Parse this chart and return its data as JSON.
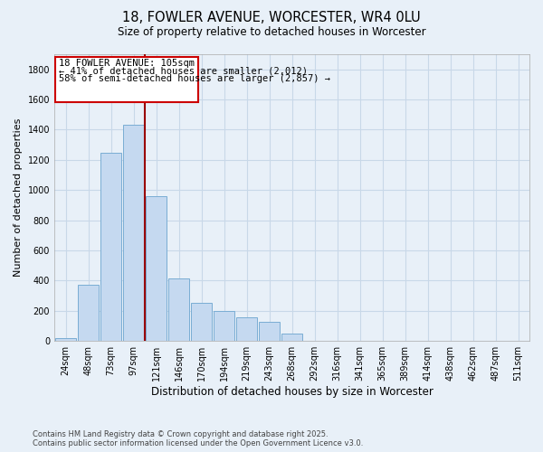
{
  "title1": "18, FOWLER AVENUE, WORCESTER, WR4 0LU",
  "title2": "Size of property relative to detached houses in Worcester",
  "xlabel": "Distribution of detached houses by size in Worcester",
  "ylabel": "Number of detached properties",
  "footnote1": "Contains HM Land Registry data © Crown copyright and database right 2025.",
  "footnote2": "Contains public sector information licensed under the Open Government Licence v3.0.",
  "bar_labels": [
    "24sqm",
    "48sqm",
    "73sqm",
    "97sqm",
    "121sqm",
    "146sqm",
    "170sqm",
    "194sqm",
    "219sqm",
    "243sqm",
    "268sqm",
    "292sqm",
    "316sqm",
    "341sqm",
    "365sqm",
    "389sqm",
    "414sqm",
    "438sqm",
    "462sqm",
    "487sqm",
    "511sqm"
  ],
  "bar_values": [
    20,
    375,
    1250,
    1430,
    960,
    415,
    255,
    200,
    155,
    130,
    50,
    0,
    0,
    0,
    0,
    0,
    0,
    0,
    0,
    0,
    0
  ],
  "bar_color": "#c5d9f0",
  "bar_edge_color": "#7aadd4",
  "ylim": [
    0,
    1900
  ],
  "yticks": [
    0,
    200,
    400,
    600,
    800,
    1000,
    1200,
    1400,
    1600,
    1800
  ],
  "vline_color": "#990000",
  "vline_x": 3.5,
  "annotation_text1": "18 FOWLER AVENUE: 105sqm",
  "annotation_text2": "← 41% of detached houses are smaller (2,012)",
  "annotation_text3": "58% of semi-detached houses are larger (2,857) →",
  "annotation_box_color": "#cc0000",
  "grid_color": "#c8d8e8",
  "background_color": "#e8f0f8"
}
